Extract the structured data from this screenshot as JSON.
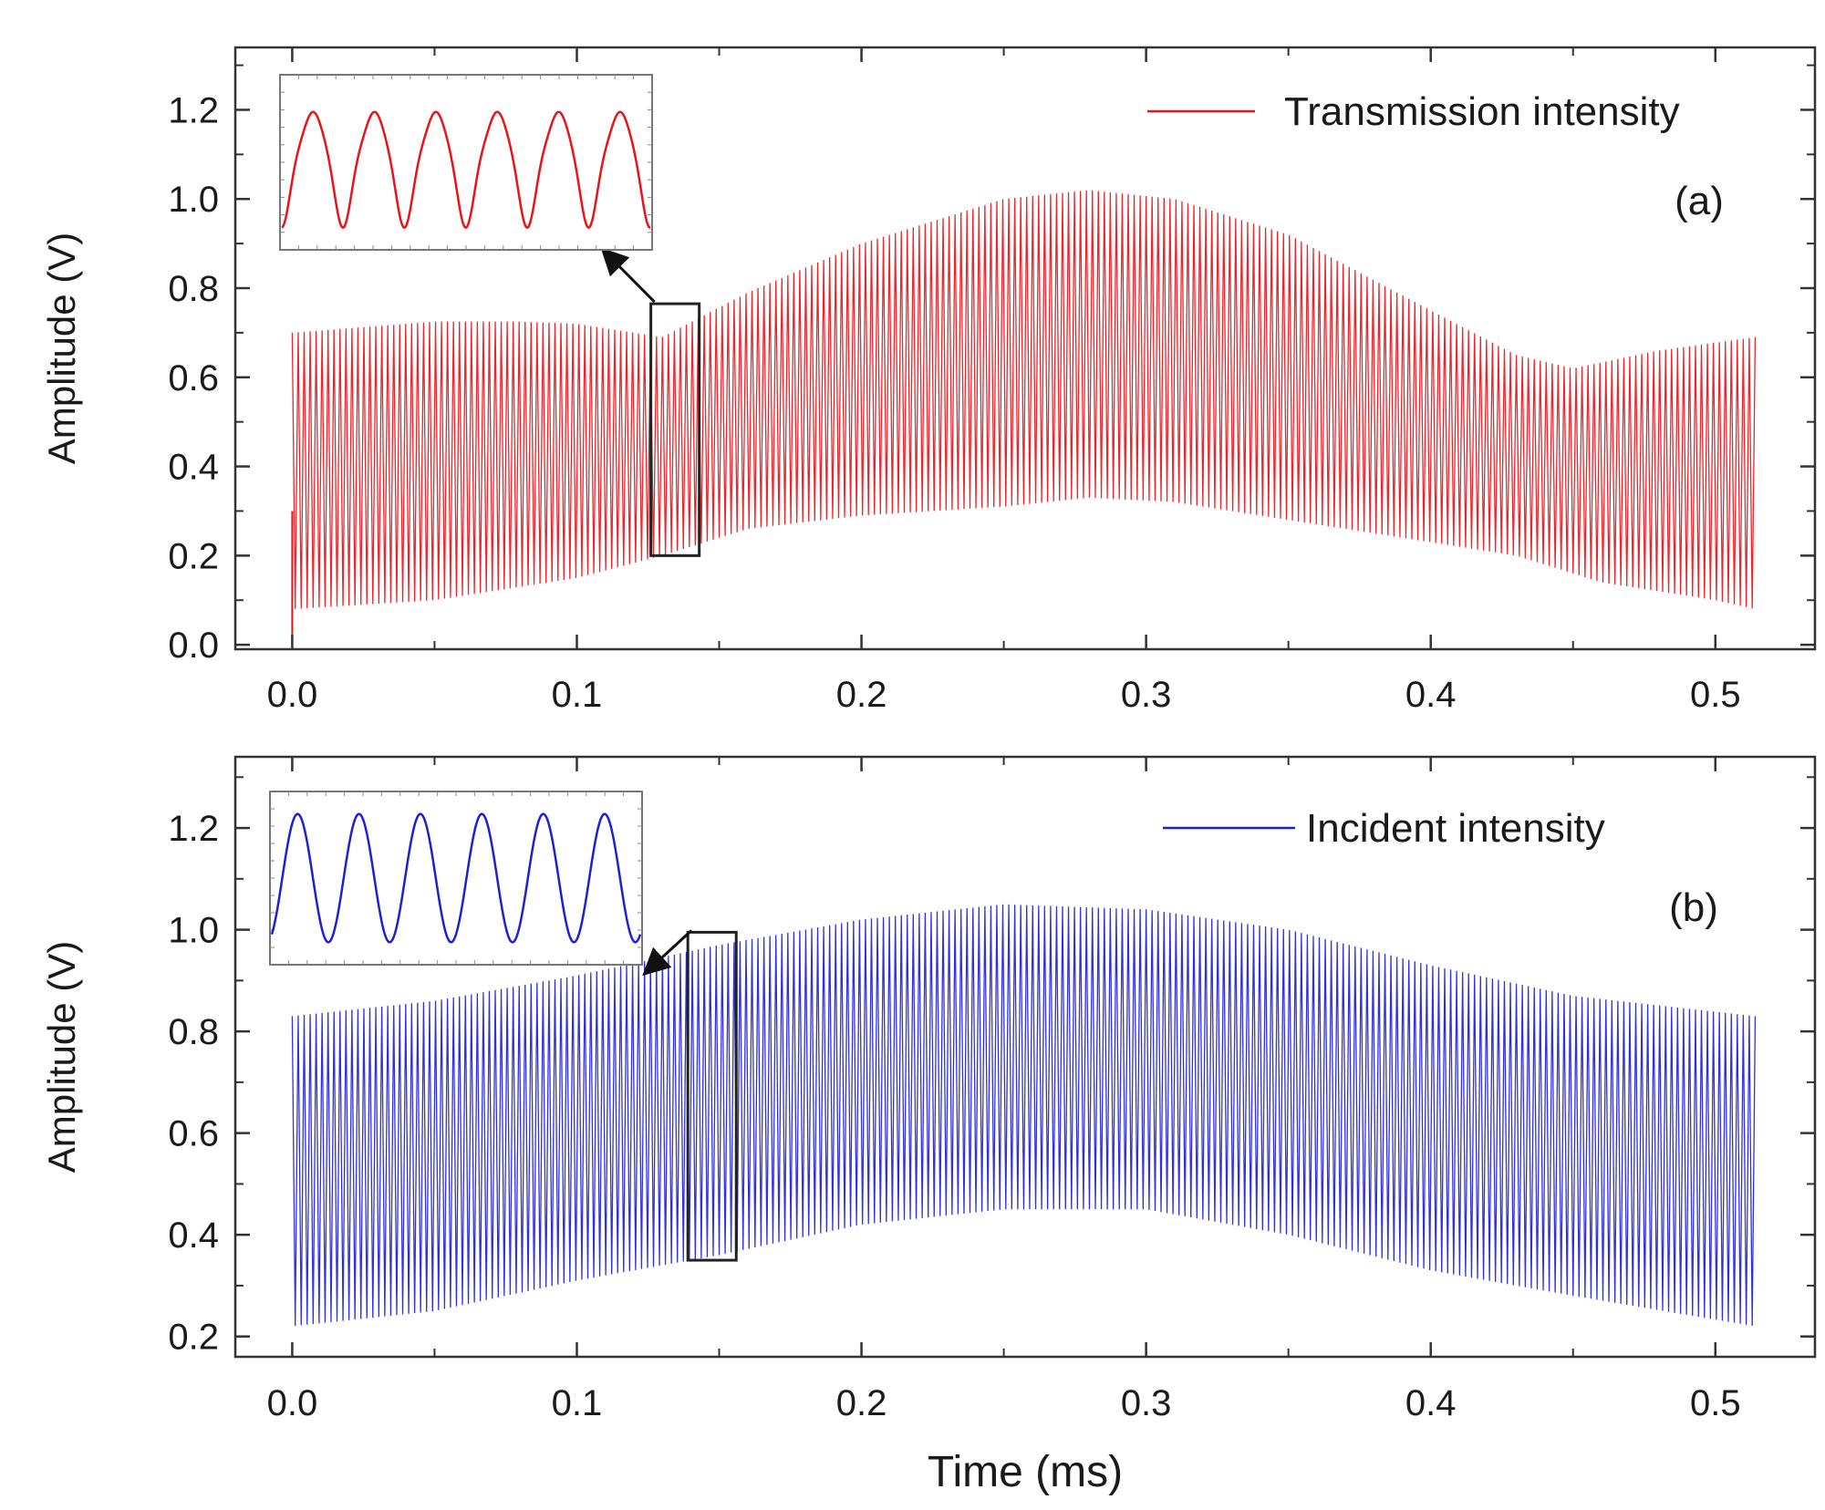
{
  "figure": {
    "xlabel": "Time (ms)"
  },
  "chart_data": [
    {
      "type": "line",
      "panel_label": "(a)",
      "title": "",
      "xlabel": "",
      "ylabel": "Amplitude (V)",
      "xlim": [
        -0.02,
        0.535
      ],
      "ylim": [
        -0.01,
        1.34
      ],
      "xticks": [
        0.0,
        0.1,
        0.2,
        0.3,
        0.4,
        0.5
      ],
      "xtick_labels": [
        "0.0",
        "0.1",
        "0.2",
        "0.3",
        "0.4",
        "0.5"
      ],
      "yticks": [
        0.0,
        0.2,
        0.4,
        0.6,
        0.8,
        1.0,
        1.2
      ],
      "ytick_labels": [
        "0.0",
        "0.2",
        "0.4",
        "0.6",
        "0.8",
        "1.0",
        "1.2"
      ],
      "legend": {
        "entry": "Transmission intensity",
        "placement": "top-right"
      },
      "color": "#e8141a",
      "period_ms": 0.0021,
      "t_start": 0.0,
      "t_end": 0.514,
      "upper_envelope": {
        "t": [
          0.0,
          0.02,
          0.05,
          0.08,
          0.1,
          0.13,
          0.16,
          0.2,
          0.25,
          0.28,
          0.31,
          0.35,
          0.4,
          0.43,
          0.45,
          0.48,
          0.514
        ],
        "v": [
          0.7,
          0.71,
          0.725,
          0.725,
          0.72,
          0.69,
          0.79,
          0.9,
          1.0,
          1.02,
          1.0,
          0.92,
          0.75,
          0.65,
          0.62,
          0.66,
          0.69
        ]
      },
      "lower_envelope": {
        "t": [
          0.0,
          0.05,
          0.1,
          0.13,
          0.16,
          0.2,
          0.25,
          0.28,
          0.31,
          0.35,
          0.4,
          0.43,
          0.46,
          0.5,
          0.514
        ],
        "v": [
          0.08,
          0.1,
          0.15,
          0.2,
          0.26,
          0.29,
          0.31,
          0.33,
          0.32,
          0.28,
          0.23,
          0.2,
          0.14,
          0.1,
          0.08
        ]
      },
      "zoom_box": {
        "t0": 0.126,
        "t1": 0.143,
        "v0": 0.2,
        "v1": 0.765
      },
      "inset": {
        "cycles": 6,
        "wave": "double-peaked"
      }
    },
    {
      "type": "line",
      "panel_label": "(b)",
      "title": "",
      "xlabel": "Time (ms)",
      "ylabel": "Amplitude (V)",
      "xlim": [
        -0.02,
        0.535
      ],
      "ylim": [
        0.16,
        1.34
      ],
      "xticks": [
        0.0,
        0.1,
        0.2,
        0.3,
        0.4,
        0.5
      ],
      "xtick_labels": [
        "0.0",
        "0.1",
        "0.2",
        "0.3",
        "0.4",
        "0.5"
      ],
      "yticks": [
        0.2,
        0.4,
        0.6,
        0.8,
        1.0,
        1.2
      ],
      "ytick_labels": [
        "0.2",
        "0.4",
        "0.6",
        "0.8",
        "1.0",
        "1.2"
      ],
      "legend": {
        "entry": "Incident intensity",
        "placement": "top-right"
      },
      "color": "#1f1fd8",
      "period_ms": 0.0021,
      "t_start": 0.0,
      "t_end": 0.514,
      "upper_envelope": {
        "t": [
          0.0,
          0.05,
          0.1,
          0.15,
          0.2,
          0.25,
          0.3,
          0.35,
          0.4,
          0.45,
          0.514
        ],
        "v": [
          0.83,
          0.86,
          0.91,
          0.97,
          1.02,
          1.05,
          1.04,
          1.0,
          0.93,
          0.87,
          0.83
        ]
      },
      "lower_envelope": {
        "t": [
          0.0,
          0.05,
          0.1,
          0.15,
          0.2,
          0.25,
          0.3,
          0.35,
          0.4,
          0.45,
          0.514
        ],
        "v": [
          0.22,
          0.25,
          0.31,
          0.36,
          0.42,
          0.45,
          0.45,
          0.4,
          0.33,
          0.28,
          0.22
        ]
      },
      "zoom_box": {
        "t0": 0.139,
        "t1": 0.156,
        "v0": 0.35,
        "v1": 0.995
      },
      "inset": {
        "cycles": 6,
        "wave": "sine"
      }
    }
  ]
}
